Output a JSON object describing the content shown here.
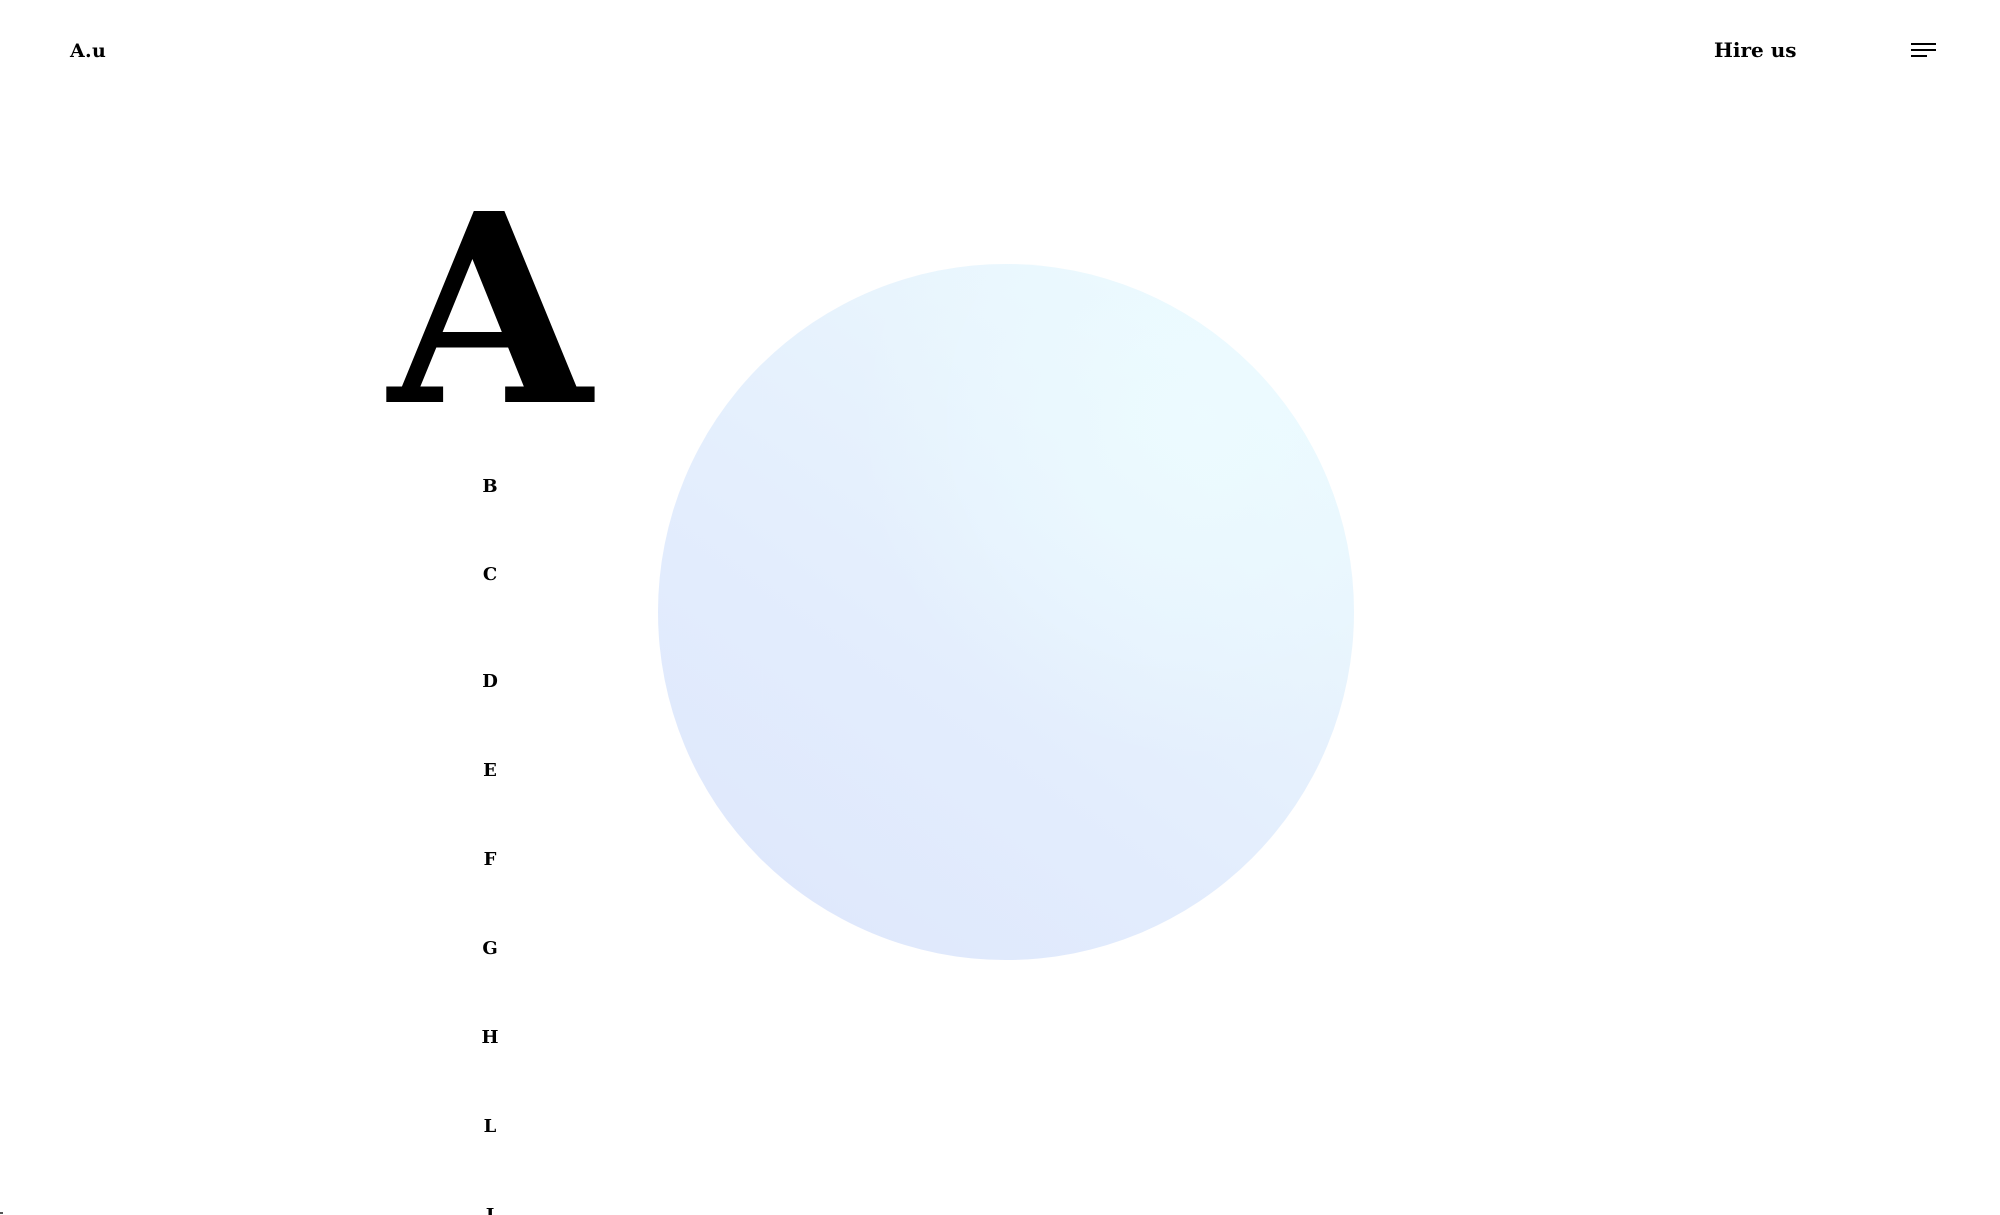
{
  "header": {
    "logo": "A.u",
    "hire_label": "Hire us",
    "menu_icon": "hamburger-menu-icon"
  },
  "index": {
    "active_letter": "A",
    "letters": [
      "B",
      "C",
      "D",
      "E",
      "F",
      "G",
      "H",
      "L",
      "J"
    ]
  },
  "hero": {
    "sphere_gradient": [
      "#dde6fc",
      "#ecfaff"
    ]
  },
  "colors": {
    "background": "#ffffff",
    "text": "#000000"
  }
}
